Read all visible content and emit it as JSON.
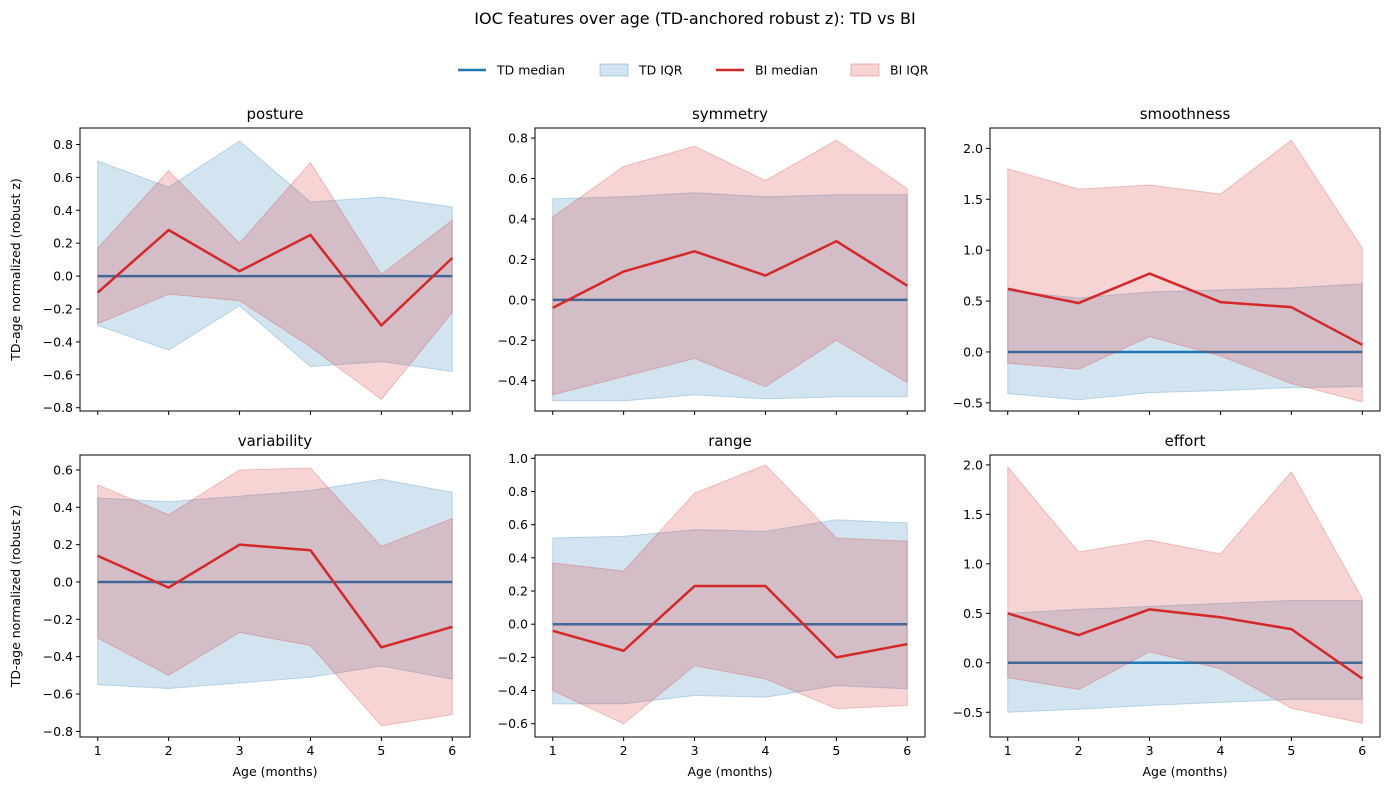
{
  "title": "IOC features over age (TD-anchored robust z): TD vs BI",
  "legend": {
    "placement": "top-center",
    "items": [
      {
        "label": "TD median",
        "kind": "line",
        "color": "#1f77b4"
      },
      {
        "label": "TD IQR",
        "kind": "band",
        "color": "#1f77b4"
      },
      {
        "label": "BI median",
        "kind": "line",
        "color": "#d62728"
      },
      {
        "label": "BI IQR",
        "kind": "band",
        "color": "#d62728"
      }
    ]
  },
  "colors": {
    "td": "#1f77b4",
    "bi": "#d62728"
  },
  "chart_data": [
    {
      "type": "line",
      "title": "posture",
      "xlabel": "",
      "ylabel": "TD-age normalized (robust z)",
      "x": [
        1,
        2,
        3,
        4,
        5,
        6
      ],
      "xlim": [
        0.75,
        6.25
      ],
      "ylim": [
        -0.82,
        0.9
      ],
      "yticks": [
        "0.8",
        "0.6",
        "0.4",
        "0.2",
        "0.0",
        "−0.2",
        "−0.4",
        "−0.6",
        "−0.8"
      ],
      "xtick_labels_visible": false,
      "series": [
        {
          "name": "TD median",
          "values": [
            0,
            0,
            0,
            0,
            0,
            0
          ]
        },
        {
          "name": "TD IQR",
          "low": [
            -0.3,
            -0.45,
            -0.18,
            -0.55,
            -0.52,
            -0.58
          ],
          "high": [
            0.7,
            0.54,
            0.82,
            0.45,
            0.48,
            0.42
          ]
        },
        {
          "name": "BI median",
          "values": [
            -0.1,
            0.28,
            0.03,
            0.25,
            -0.3,
            0.11
          ]
        },
        {
          "name": "BI IQR",
          "low": [
            -0.29,
            -0.11,
            -0.15,
            -0.43,
            -0.75,
            -0.22
          ],
          "high": [
            0.17,
            0.64,
            0.2,
            0.69,
            0.01,
            0.34
          ]
        }
      ]
    },
    {
      "type": "line",
      "title": "symmetry",
      "xlabel": "",
      "ylabel": "",
      "x": [
        1,
        2,
        3,
        4,
        5,
        6
      ],
      "xlim": [
        0.75,
        6.25
      ],
      "ylim": [
        -0.55,
        0.85
      ],
      "yticks": [
        "0.8",
        "0.6",
        "0.4",
        "0.2",
        "0.0",
        "−0.2",
        "−0.4"
      ],
      "xtick_labels_visible": false,
      "series": [
        {
          "name": "TD median",
          "values": [
            0,
            0,
            0,
            0,
            0,
            0
          ]
        },
        {
          "name": "TD IQR",
          "low": [
            -0.5,
            -0.5,
            -0.47,
            -0.49,
            -0.48,
            -0.48
          ],
          "high": [
            0.5,
            0.51,
            0.53,
            0.51,
            0.52,
            0.52
          ]
        },
        {
          "name": "BI median",
          "values": [
            -0.04,
            0.14,
            0.24,
            0.12,
            0.29,
            0.07
          ]
        },
        {
          "name": "BI IQR",
          "low": [
            -0.47,
            -0.38,
            -0.29,
            -0.43,
            -0.2,
            -0.41
          ],
          "high": [
            0.41,
            0.66,
            0.76,
            0.59,
            0.79,
            0.55
          ]
        }
      ]
    },
    {
      "type": "line",
      "title": "smoothness",
      "xlabel": "",
      "ylabel": "",
      "x": [
        1,
        2,
        3,
        4,
        5,
        6
      ],
      "xlim": [
        0.75,
        6.25
      ],
      "ylim": [
        -0.58,
        2.2
      ],
      "yticks": [
        "2.0",
        "1.5",
        "1.0",
        "0.5",
        "0.0",
        "−0.5"
      ],
      "xtick_labels_visible": false,
      "series": [
        {
          "name": "TD median",
          "values": [
            0,
            0,
            0,
            0,
            0,
            0
          ]
        },
        {
          "name": "TD IQR",
          "low": [
            -0.41,
            -0.47,
            -0.4,
            -0.38,
            -0.35,
            -0.34
          ],
          "high": [
            0.6,
            0.53,
            0.59,
            0.61,
            0.63,
            0.67
          ]
        },
        {
          "name": "BI median",
          "values": [
            0.62,
            0.48,
            0.77,
            0.49,
            0.44,
            0.07
          ]
        },
        {
          "name": "BI IQR",
          "low": [
            -0.11,
            -0.17,
            0.15,
            -0.04,
            -0.31,
            -0.49
          ],
          "high": [
            1.8,
            1.6,
            1.64,
            1.55,
            2.08,
            1.02
          ]
        }
      ]
    },
    {
      "type": "line",
      "title": "variability",
      "xlabel": "Age (months)",
      "ylabel": "TD-age normalized (robust z)",
      "x": [
        1,
        2,
        3,
        4,
        5,
        6
      ],
      "xlim": [
        0.75,
        6.25
      ],
      "ylim": [
        -0.83,
        0.68
      ],
      "yticks": [
        "0.6",
        "0.4",
        "0.2",
        "0.0",
        "−0.2",
        "−0.4",
        "−0.6",
        "−0.8"
      ],
      "xtick_labels_visible": true,
      "xticks": [
        "1",
        "2",
        "3",
        "4",
        "5",
        "6"
      ],
      "series": [
        {
          "name": "TD median",
          "values": [
            0,
            0,
            0,
            0,
            0,
            0
          ]
        },
        {
          "name": "TD IQR",
          "low": [
            -0.55,
            -0.57,
            -0.54,
            -0.51,
            -0.45,
            -0.52
          ],
          "high": [
            0.45,
            0.43,
            0.46,
            0.49,
            0.55,
            0.48
          ]
        },
        {
          "name": "BI median",
          "values": [
            0.14,
            -0.03,
            0.2,
            0.17,
            -0.35,
            -0.24
          ]
        },
        {
          "name": "BI IQR",
          "low": [
            -0.3,
            -0.5,
            -0.27,
            -0.34,
            -0.77,
            -0.71
          ],
          "high": [
            0.52,
            0.36,
            0.6,
            0.61,
            0.19,
            0.34
          ]
        }
      ]
    },
    {
      "type": "line",
      "title": "range",
      "xlabel": "Age (months)",
      "ylabel": "",
      "x": [
        1,
        2,
        3,
        4,
        5,
        6
      ],
      "xlim": [
        0.75,
        6.25
      ],
      "ylim": [
        -0.68,
        1.02
      ],
      "yticks": [
        "1.0",
        "0.8",
        "0.6",
        "0.4",
        "0.2",
        "0.0",
        "−0.2",
        "−0.4",
        "−0.6"
      ],
      "xtick_labels_visible": true,
      "xticks": [
        "1",
        "2",
        "3",
        "4",
        "5",
        "6"
      ],
      "series": [
        {
          "name": "TD median",
          "values": [
            0,
            0,
            0,
            0,
            0,
            0
          ]
        },
        {
          "name": "TD IQR",
          "low": [
            -0.48,
            -0.48,
            -0.43,
            -0.44,
            -0.37,
            -0.39
          ],
          "high": [
            0.52,
            0.53,
            0.57,
            0.56,
            0.63,
            0.61
          ]
        },
        {
          "name": "BI median",
          "values": [
            -0.04,
            -0.16,
            0.23,
            0.23,
            -0.2,
            -0.12
          ]
        },
        {
          "name": "BI IQR",
          "low": [
            -0.4,
            -0.6,
            -0.25,
            -0.33,
            -0.51,
            -0.49
          ],
          "high": [
            0.37,
            0.32,
            0.79,
            0.96,
            0.52,
            0.5
          ]
        }
      ]
    },
    {
      "type": "line",
      "title": "effort",
      "xlabel": "Age (months)",
      "ylabel": "",
      "x": [
        1,
        2,
        3,
        4,
        5,
        6
      ],
      "xlim": [
        0.75,
        6.25
      ],
      "ylim": [
        -0.75,
        2.1
      ],
      "yticks": [
        "2.0",
        "1.5",
        "1.0",
        "0.5",
        "0.0",
        "−0.5"
      ],
      "xtick_labels_visible": true,
      "xticks": [
        "1",
        "2",
        "3",
        "4",
        "5",
        "6"
      ],
      "series": [
        {
          "name": "TD median",
          "values": [
            0,
            0,
            0,
            0,
            0,
            0
          ]
        },
        {
          "name": "TD IQR",
          "low": [
            -0.5,
            -0.47,
            -0.43,
            -0.4,
            -0.37,
            -0.37
          ],
          "high": [
            0.5,
            0.54,
            0.57,
            0.6,
            0.63,
            0.63
          ]
        },
        {
          "name": "BI median",
          "values": [
            0.5,
            0.28,
            0.54,
            0.46,
            0.34,
            -0.16
          ]
        },
        {
          "name": "BI IQR",
          "low": [
            -0.15,
            -0.27,
            0.11,
            -0.06,
            -0.46,
            -0.61
          ],
          "high": [
            1.98,
            1.12,
            1.24,
            1.1,
            1.93,
            0.65
          ]
        }
      ]
    }
  ]
}
